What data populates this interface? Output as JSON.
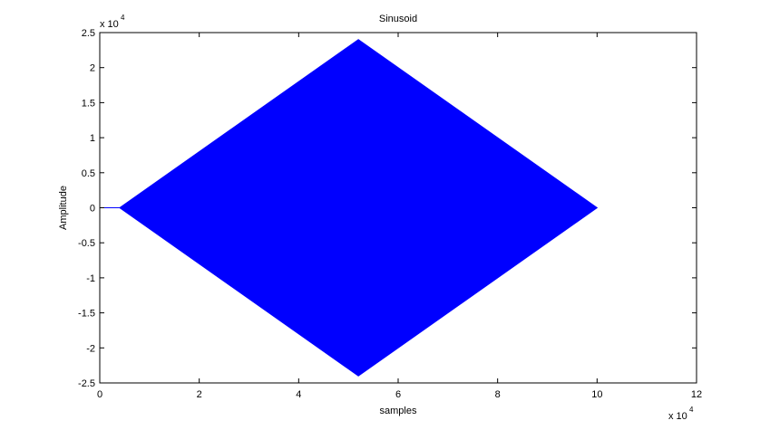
{
  "chart_data": {
    "type": "area",
    "title": "Sinusoid",
    "xlabel": "samples",
    "ylabel": "Amplitude",
    "xlim": [
      0,
      120000
    ],
    "ylim": [
      -25000,
      25000
    ],
    "x_ticks": [
      0,
      20000,
      40000,
      60000,
      80000,
      100000,
      120000
    ],
    "x_tick_labels": [
      "0",
      "2",
      "4",
      "6",
      "8",
      "10",
      "12"
    ],
    "y_ticks": [
      25000,
      20000,
      15000,
      10000,
      5000,
      0,
      -5000,
      -10000,
      -15000,
      -20000,
      -25000
    ],
    "y_tick_labels": [
      "2.5",
      "2",
      "1.5",
      "1",
      "0.5",
      "0",
      "-0.5",
      "-1",
      "-1.5",
      "-2",
      "-2.5"
    ],
    "x_multiplier": "x 10",
    "x_multiplier_exp": "4",
    "y_multiplier": "x 10",
    "y_multiplier_exp": "4",
    "grid": false,
    "series": [
      {
        "color": "#0000ff",
        "flat_segment": {
          "x": [
            0,
            4000
          ],
          "y": 0
        },
        "envelope_upper": {
          "x": [
            4000,
            52000,
            100000
          ],
          "y": [
            0,
            24000,
            0
          ]
        },
        "envelope_lower": {
          "x": [
            4000,
            52000,
            100000
          ],
          "y": [
            0,
            -24000,
            0
          ]
        }
      }
    ]
  }
}
